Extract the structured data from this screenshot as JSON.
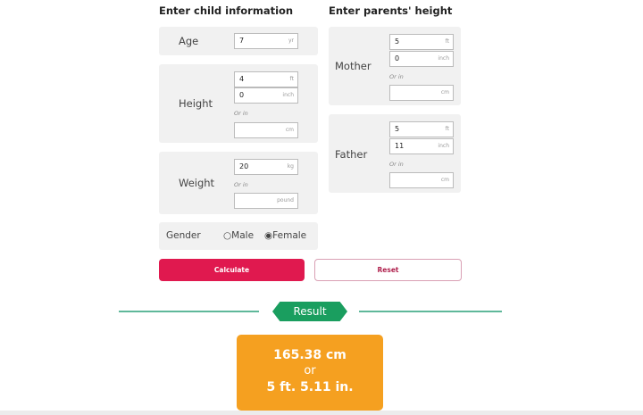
{
  "child": {
    "heading": "Enter child information",
    "age": {
      "label": "Age",
      "value": "7",
      "unit": "yr"
    },
    "height": {
      "label": "Height",
      "ft": "4",
      "ft_unit": "ft",
      "inch": "0",
      "inch_unit": "inch",
      "or_in": "Or in",
      "cm": "",
      "cm_unit": "cm"
    },
    "weight": {
      "label": "Weight",
      "kg": "20",
      "kg_unit": "kg",
      "or_in": "Or in",
      "pound": "",
      "pound_unit": "pound"
    },
    "gender": {
      "label": "Gender",
      "options": [
        "Male",
        "Female"
      ],
      "selected": "Female"
    }
  },
  "parents": {
    "heading": "Enter parents' height",
    "mother": {
      "label": "Mother",
      "ft": "5",
      "ft_unit": "ft",
      "inch": "0",
      "inch_unit": "inch",
      "or_in": "Or in",
      "cm": "",
      "cm_unit": "cm"
    },
    "father": {
      "label": "Father",
      "ft": "5",
      "ft_unit": "ft",
      "inch": "11",
      "inch_unit": "inch",
      "or_in": "Or in",
      "cm": "",
      "cm_unit": "cm"
    }
  },
  "buttons": {
    "calculate": "Calculate",
    "reset": "Reset"
  },
  "result": {
    "badge": "Result",
    "cm": "165.38 cm",
    "or": "or",
    "ftin": "5 ft. 5.11 in."
  },
  "colors": {
    "primary": "#e0194f",
    "result_green": "#1a9e5f",
    "result_box": "#f5a020"
  }
}
